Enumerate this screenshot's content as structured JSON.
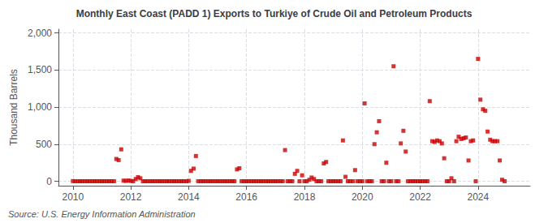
{
  "chart_data": {
    "type": "scatter",
    "title": "Monthly East Coast (PADD 1) Exports to Turkiye of Crude Oil and Petroleum Products",
    "ylabel": "Thousand Barrels",
    "source": "Source: U.S. Energy Information Administration",
    "color": "#cc0000",
    "marker": "square",
    "grid": true,
    "xlim": [
      2009.5,
      2025.8
    ],
    "ylim": [
      -60,
      2050
    ],
    "xticks": [
      2010,
      2012,
      2014,
      2016,
      2018,
      2020,
      2022,
      2024
    ],
    "yticks": [
      0,
      500,
      {
        "value": 1000,
        "label": "1,000"
      },
      {
        "value": 1500,
        "label": "1,500"
      },
      {
        "value": 2000,
        "label": "2,000"
      }
    ],
    "x": [
      2010.0,
      2010.08,
      2010.17,
      2010.25,
      2010.33,
      2010.42,
      2010.5,
      2010.58,
      2010.67,
      2010.75,
      2010.83,
      2010.92,
      2011.0,
      2011.08,
      2011.17,
      2011.25,
      2011.33,
      2011.42,
      2011.5,
      2011.58,
      2011.67,
      2011.75,
      2011.83,
      2011.92,
      2012.0,
      2012.08,
      2012.17,
      2012.25,
      2012.33,
      2012.42,
      2012.5,
      2012.58,
      2012.67,
      2012.75,
      2012.83,
      2012.92,
      2013.0,
      2013.08,
      2013.17,
      2013.25,
      2013.33,
      2013.42,
      2013.5,
      2013.58,
      2013.67,
      2013.75,
      2013.83,
      2013.92,
      2014.0,
      2014.08,
      2014.17,
      2014.25,
      2014.33,
      2014.42,
      2014.5,
      2014.58,
      2014.67,
      2014.75,
      2014.83,
      2014.92,
      2015.0,
      2015.08,
      2015.17,
      2015.25,
      2015.33,
      2015.42,
      2015.5,
      2015.58,
      2015.67,
      2015.75,
      2015.83,
      2015.92,
      2016.0,
      2016.08,
      2016.17,
      2016.25,
      2016.33,
      2016.42,
      2016.5,
      2016.58,
      2016.67,
      2016.75,
      2016.83,
      2016.92,
      2017.0,
      2017.08,
      2017.17,
      2017.25,
      2017.33,
      2017.42,
      2017.5,
      2017.58,
      2017.67,
      2017.75,
      2017.83,
      2017.92,
      2018.0,
      2018.08,
      2018.17,
      2018.25,
      2018.33,
      2018.42,
      2018.5,
      2018.58,
      2018.67,
      2018.75,
      2018.83,
      2018.92,
      2019.0,
      2019.08,
      2019.17,
      2019.25,
      2019.33,
      2019.42,
      2019.5,
      2019.58,
      2019.67,
      2019.75,
      2019.83,
      2019.92,
      2020.0,
      2020.08,
      2020.17,
      2020.25,
      2020.33,
      2020.42,
      2020.5,
      2020.58,
      2020.67,
      2020.75,
      2020.83,
      2020.92,
      2021.0,
      2021.08,
      2021.17,
      2021.25,
      2021.33,
      2021.42,
      2021.5,
      2021.58,
      2021.67,
      2021.75,
      2021.83,
      2021.92,
      2022.0,
      2022.08,
      2022.17,
      2022.25,
      2022.33,
      2022.42,
      2022.5,
      2022.58,
      2022.67,
      2022.75,
      2022.83,
      2022.92,
      2023.0,
      2023.08,
      2023.17,
      2023.25,
      2023.33,
      2023.42,
      2023.5,
      2023.58,
      2023.67,
      2023.75,
      2023.83,
      2023.92,
      2024.0,
      2024.08,
      2024.17,
      2024.25,
      2024.33,
      2024.42,
      2024.5,
      2024.58,
      2024.67,
      2024.75,
      2024.83,
      2024.92
    ],
    "values": [
      2,
      0,
      0,
      0,
      0,
      0,
      0,
      0,
      0,
      0,
      0,
      0,
      0,
      0,
      0,
      0,
      0,
      0,
      300,
      285,
      430,
      8,
      5,
      10,
      5,
      0,
      30,
      55,
      40,
      0,
      0,
      0,
      0,
      0,
      0,
      0,
      0,
      0,
      0,
      0,
      0,
      0,
      0,
      0,
      0,
      0,
      0,
      0,
      5,
      140,
      170,
      340,
      0,
      0,
      0,
      0,
      0,
      0,
      0,
      0,
      0,
      0,
      0,
      0,
      0,
      0,
      0,
      0,
      160,
      175,
      0,
      0,
      0,
      0,
      0,
      0,
      0,
      0,
      0,
      0,
      0,
      0,
      0,
      0,
      0,
      0,
      0,
      0,
      420,
      0,
      0,
      0,
      100,
      140,
      0,
      80,
      0,
      0,
      20,
      50,
      30,
      0,
      0,
      0,
      240,
      260,
      0,
      0,
      0,
      0,
      0,
      0,
      550,
      60,
      0,
      0,
      0,
      150,
      0,
      0,
      0,
      1050,
      0,
      0,
      0,
      500,
      660,
      810,
      0,
      0,
      250,
      0,
      0,
      1550,
      0,
      0,
      510,
      680,
      400,
      0,
      0,
      0,
      0,
      0,
      0,
      0,
      0,
      0,
      1080,
      540,
      530,
      550,
      540,
      510,
      310,
      0,
      0,
      40,
      0,
      540,
      600,
      570,
      580,
      590,
      280,
      540,
      550,
      0,
      1650,
      1100,
      970,
      950,
      670,
      560,
      540,
      540,
      540,
      280,
      20,
      0
    ]
  }
}
